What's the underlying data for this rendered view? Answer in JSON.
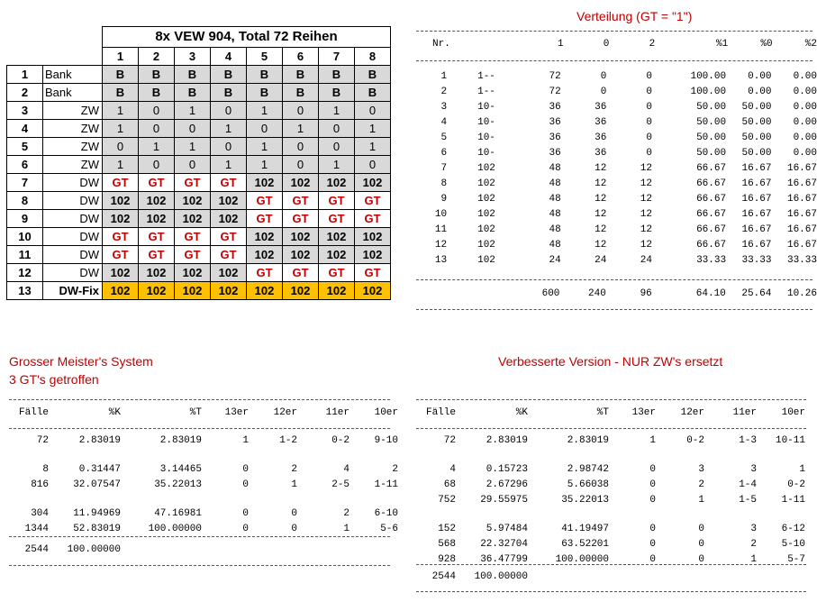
{
  "grid": {
    "title": "8x VEW 904, Total 72 Reihen",
    "columns": [
      "1",
      "2",
      "3",
      "4",
      "5",
      "6",
      "7",
      "8"
    ],
    "rows": [
      {
        "nr": "1",
        "label": "Bank",
        "cells": [
          "B",
          "B",
          "B",
          "B",
          "B",
          "B",
          "B",
          "B"
        ]
      },
      {
        "nr": "2",
        "label": "Bank",
        "cells": [
          "B",
          "B",
          "B",
          "B",
          "B",
          "B",
          "B",
          "B"
        ]
      },
      {
        "nr": "3",
        "label": "ZW",
        "cells": [
          "1",
          "0",
          "1",
          "0",
          "1",
          "0",
          "1",
          "0"
        ]
      },
      {
        "nr": "4",
        "label": "ZW",
        "cells": [
          "1",
          "0",
          "0",
          "1",
          "0",
          "1",
          "0",
          "1"
        ]
      },
      {
        "nr": "5",
        "label": "ZW",
        "cells": [
          "0",
          "1",
          "1",
          "0",
          "1",
          "0",
          "0",
          "1"
        ]
      },
      {
        "nr": "6",
        "label": "ZW",
        "cells": [
          "1",
          "0",
          "0",
          "1",
          "1",
          "0",
          "1",
          "0"
        ]
      },
      {
        "nr": "7",
        "label": "DW",
        "cells": [
          "GT",
          "GT",
          "GT",
          "GT",
          "102",
          "102",
          "102",
          "102"
        ]
      },
      {
        "nr": "8",
        "label": "DW",
        "cells": [
          "102",
          "102",
          "102",
          "102",
          "GT",
          "GT",
          "GT",
          "GT"
        ]
      },
      {
        "nr": "9",
        "label": "DW",
        "cells": [
          "102",
          "102",
          "102",
          "102",
          "GT",
          "GT",
          "GT",
          "GT"
        ]
      },
      {
        "nr": "10",
        "label": "DW",
        "cells": [
          "GT",
          "GT",
          "GT",
          "GT",
          "102",
          "102",
          "102",
          "102"
        ]
      },
      {
        "nr": "11",
        "label": "DW",
        "cells": [
          "GT",
          "GT",
          "GT",
          "GT",
          "102",
          "102",
          "102",
          "102"
        ]
      },
      {
        "nr": "12",
        "label": "DW",
        "cells": [
          "102",
          "102",
          "102",
          "102",
          "GT",
          "GT",
          "GT",
          "GT"
        ]
      },
      {
        "nr": "13",
        "label": "DW-Fix",
        "cells": [
          "102",
          "102",
          "102",
          "102",
          "102",
          "102",
          "102",
          "102"
        ]
      }
    ]
  },
  "verteilung": {
    "title": "Verteilung  (GT = \"1\")",
    "headers": [
      "Nr.",
      "",
      "1",
      "0",
      "2",
      "%1",
      "%0",
      "%2"
    ],
    "rows": [
      [
        "1",
        "1--",
        "72",
        "0",
        "0",
        "100.00",
        "0.00",
        "0.00"
      ],
      [
        "2",
        "1--",
        "72",
        "0",
        "0",
        "100.00",
        "0.00",
        "0.00"
      ],
      [
        "3",
        "10-",
        "36",
        "36",
        "0",
        "50.00",
        "50.00",
        "0.00"
      ],
      [
        "4",
        "10-",
        "36",
        "36",
        "0",
        "50.00",
        "50.00",
        "0.00"
      ],
      [
        "5",
        "10-",
        "36",
        "36",
        "0",
        "50.00",
        "50.00",
        "0.00"
      ],
      [
        "6",
        "10-",
        "36",
        "36",
        "0",
        "50.00",
        "50.00",
        "0.00"
      ],
      [
        "7",
        "102",
        "48",
        "12",
        "12",
        "66.67",
        "16.67",
        "16.67"
      ],
      [
        "8",
        "102",
        "48",
        "12",
        "12",
        "66.67",
        "16.67",
        "16.67"
      ],
      [
        "9",
        "102",
        "48",
        "12",
        "12",
        "66.67",
        "16.67",
        "16.67"
      ],
      [
        "10",
        "102",
        "48",
        "12",
        "12",
        "66.67",
        "16.67",
        "16.67"
      ],
      [
        "11",
        "102",
        "48",
        "12",
        "12",
        "66.67",
        "16.67",
        "16.67"
      ],
      [
        "12",
        "102",
        "48",
        "12",
        "12",
        "66.67",
        "16.67",
        "16.67"
      ],
      [
        "13",
        "102",
        "24",
        "24",
        "24",
        "33.33",
        "33.33",
        "33.33"
      ]
    ],
    "totals": [
      "",
      "",
      "600",
      "240",
      "96",
      "64.10",
      "25.64",
      "10.26"
    ]
  },
  "grosser": {
    "title1": "Grosser Meister's System",
    "title2": "3 GT's getroffen",
    "headers": [
      "Fälle",
      "%K",
      "%T",
      "13er",
      "12er",
      "11er",
      "10er"
    ],
    "groups": [
      [
        [
          "72",
          "2.83019",
          "2.83019",
          "1",
          "1-2",
          "0-2",
          "9-10"
        ]
      ],
      [
        [
          "8",
          "0.31447",
          "3.14465",
          "0",
          "2",
          "4",
          "2"
        ],
        [
          "816",
          "32.07547",
          "35.22013",
          "0",
          "1",
          "2-5",
          "1-11"
        ]
      ],
      [
        [
          "304",
          "11.94969",
          "47.16981",
          "0",
          "0",
          "2",
          "6-10"
        ],
        [
          "1344",
          "52.83019",
          "100.00000",
          "0",
          "0",
          "1",
          "5-6"
        ]
      ]
    ],
    "total": [
      "2544",
      "100.00000"
    ]
  },
  "verbessert": {
    "title": "Verbesserte Version - NUR ZW's ersetzt",
    "headers": [
      "Fälle",
      "%K",
      "%T",
      "13er",
      "12er",
      "11er",
      "10er"
    ],
    "groups": [
      [
        [
          "72",
          "2.83019",
          "2.83019",
          "1",
          "0-2",
          "1-3",
          "10-11"
        ]
      ],
      [
        [
          "4",
          "0.15723",
          "2.98742",
          "0",
          "3",
          "3",
          "1"
        ],
        [
          "68",
          "2.67296",
          "5.66038",
          "0",
          "2",
          "1-4",
          "0-2"
        ],
        [
          "752",
          "29.55975",
          "35.22013",
          "0",
          "1",
          "1-5",
          "1-11"
        ]
      ],
      [
        [
          "152",
          "5.97484",
          "41.19497",
          "0",
          "0",
          "3",
          "6-12"
        ],
        [
          "568",
          "22.32704",
          "63.52201",
          "0",
          "0",
          "2",
          "5-10"
        ],
        [
          "928",
          "36.47799",
          "100.00000",
          "0",
          "0",
          "1",
          "5-7"
        ]
      ]
    ],
    "total": [
      "2544",
      "100.00000"
    ]
  }
}
